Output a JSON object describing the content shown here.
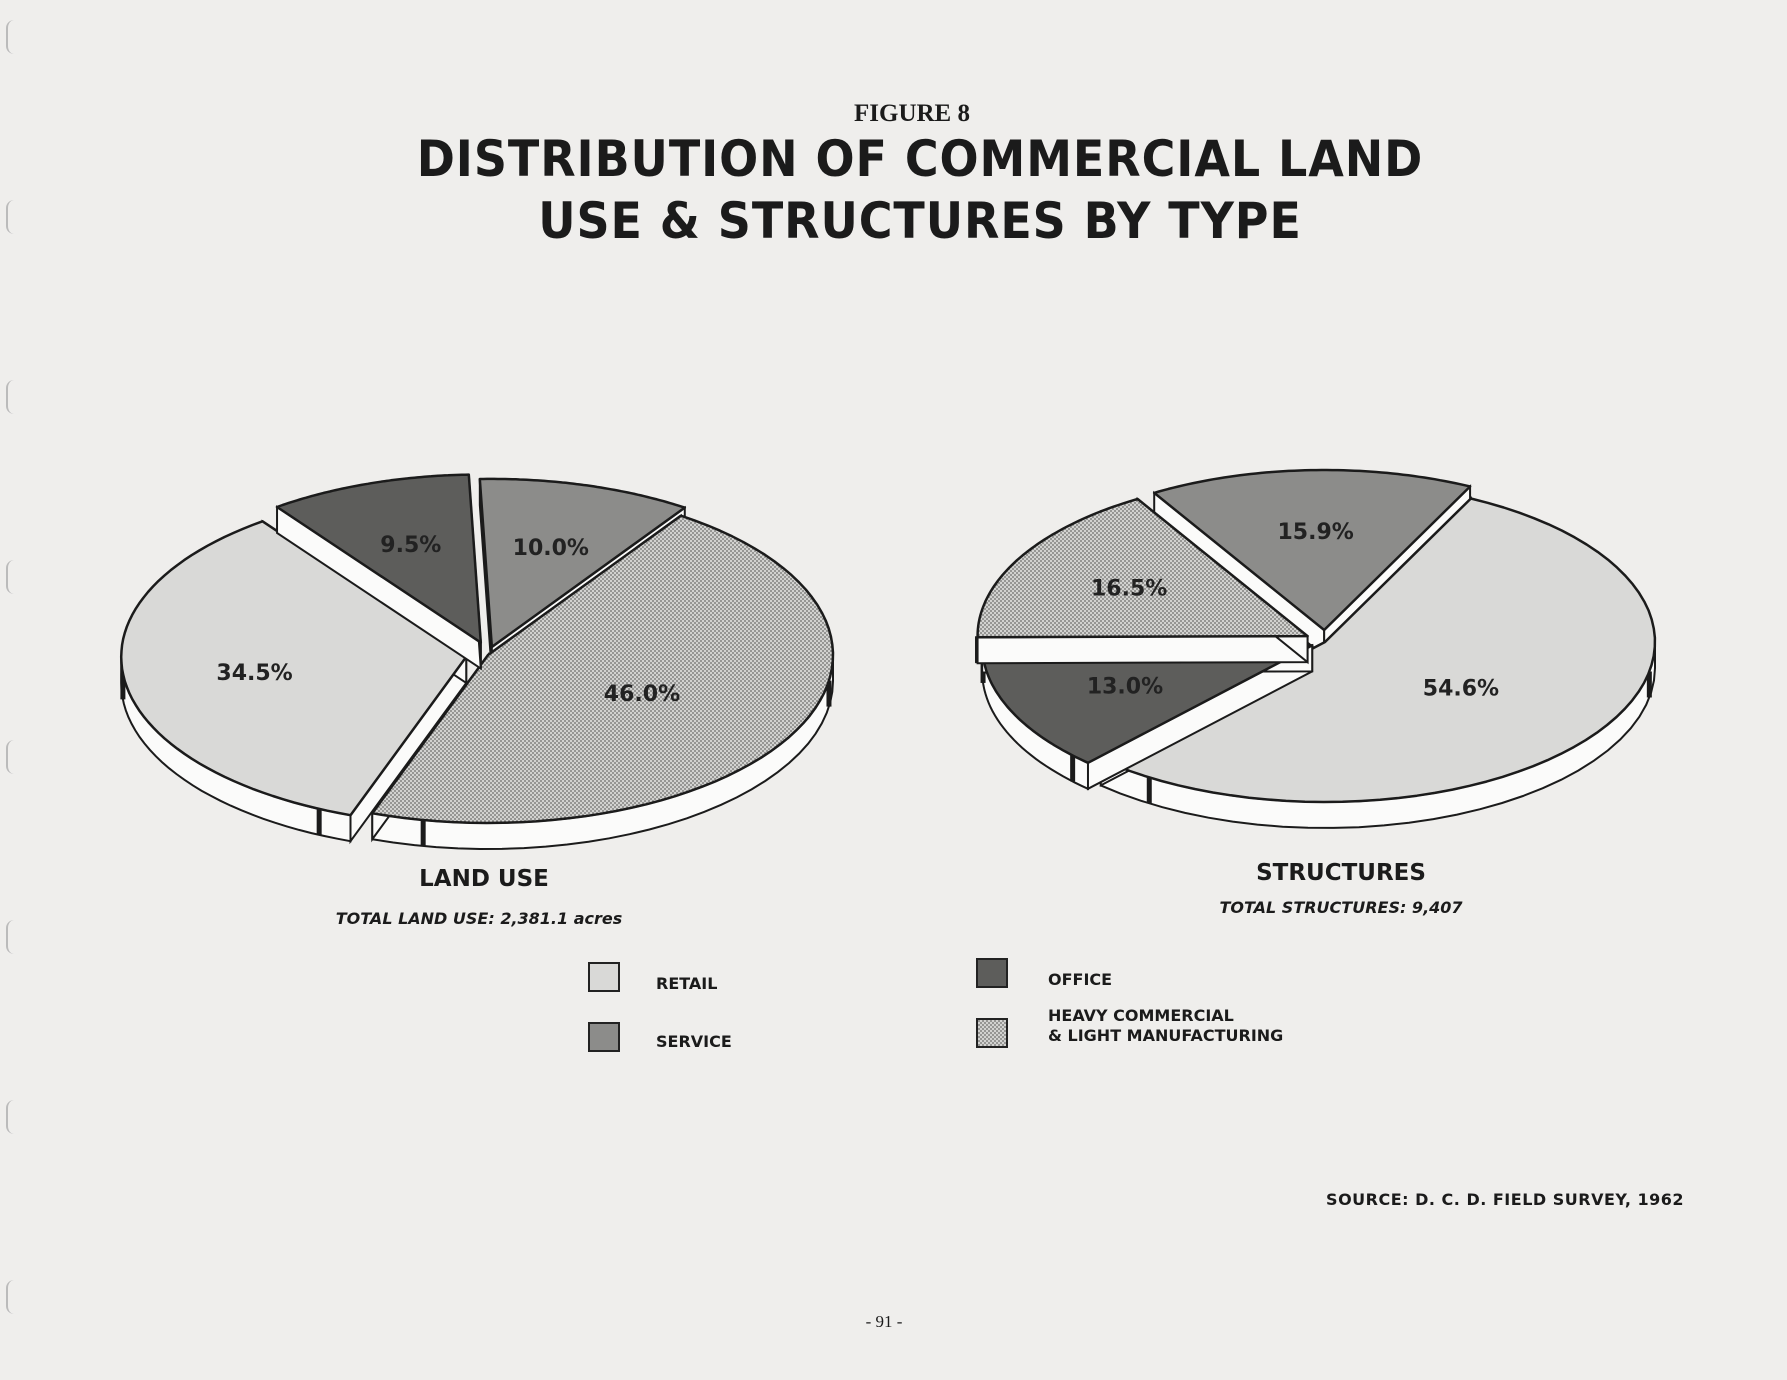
{
  "figure_label": "FIGURE 8",
  "title_lines": [
    "DISTRIBUTION OF COMMERCIAL LAND",
    "USE & STRUCTURES BY TYPE"
  ],
  "colors": {
    "retail": "#d9d9d7",
    "service": "#8c8c8a",
    "office": "#5d5d5b",
    "heavy": "#c4c4c2",
    "outline": "#1b1b1b",
    "paper": "#efeeec"
  },
  "legend": [
    {
      "key": "retail",
      "label": "RETAIL"
    },
    {
      "key": "service",
      "label": "SERVICE"
    },
    {
      "key": "office",
      "label": "OFFICE"
    },
    {
      "key": "heavy",
      "label": "HEAVY COMMERCIAL",
      "label2": "& LIGHT MANUFACTURING"
    }
  ],
  "chart_data": [
    {
      "type": "pie",
      "title": "LAND USE",
      "subtitle": "TOTAL LAND USE: 2,381.1 acres",
      "style": "3d-exploded",
      "slices": [
        {
          "category": "SERVICE",
          "key": "service",
          "value": 10.0,
          "label": "10.0%"
        },
        {
          "category": "HEAVY COMMERCIAL & LIGHT MANUFACTURING",
          "key": "heavy",
          "value": 46.0,
          "label": "46.0%"
        },
        {
          "category": "RETAIL",
          "key": "retail",
          "value": 34.5,
          "label": "34.5%"
        },
        {
          "category": "OFFICE",
          "key": "office",
          "value": 9.5,
          "label": "9.5%"
        }
      ]
    },
    {
      "type": "pie",
      "title": "STRUCTURES",
      "subtitle": "TOTAL STRUCTURES: 9,407",
      "style": "3d-exploded",
      "slices": [
        {
          "category": "SERVICE",
          "key": "service",
          "value": 15.9,
          "label": "15.9%"
        },
        {
          "category": "RETAIL",
          "key": "retail",
          "value": 54.6,
          "label": "54.6%"
        },
        {
          "category": "OFFICE",
          "key": "office",
          "value": 13.0,
          "label": "13.0%"
        },
        {
          "category": "HEAVY COMMERCIAL & LIGHT MANUFACTURING",
          "key": "heavy",
          "value": 16.5,
          "label": "16.5%"
        }
      ]
    }
  ],
  "source": "SOURCE:  D. C. D. FIELD SURVEY, 1962",
  "page_number": "- 91 -"
}
